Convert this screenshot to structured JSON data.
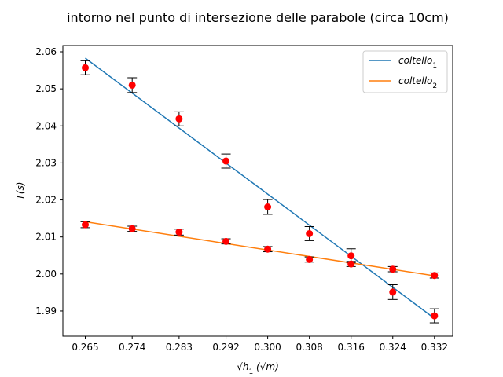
{
  "chart_data": {
    "type": "scatter",
    "title": "intorno nel punto di intersezione delle parabole (circa 10cm)",
    "xlabel_main": "√h",
    "xlabel_sub": "1",
    "xlabel_unit": "(√m)",
    "ylabel": "T(s)",
    "xlim": [
      0.2607,
      0.3355
    ],
    "ylim": [
      1.9832,
      2.0617
    ],
    "x_ticks": [
      0.265,
      0.274,
      0.283,
      0.292,
      0.3,
      0.308,
      0.316,
      0.324,
      0.332
    ],
    "x_tick_labels": [
      "0.265",
      "0.274",
      "0.283",
      "0.292",
      "0.300",
      "0.308",
      "0.316",
      "0.324",
      "0.332"
    ],
    "y_ticks": [
      1.99,
      2.0,
      2.01,
      2.02,
      2.03,
      2.04,
      2.05,
      2.06
    ],
    "y_tick_labels": [
      "1.99",
      "2.00",
      "2.01",
      "2.02",
      "2.03",
      "2.04",
      "2.05",
      "2.06"
    ],
    "legend_position": "top-right",
    "grid": false,
    "series": [
      {
        "name": "coltello",
        "name_sub": "1",
        "color": "#1f77b4",
        "fit_line": {
          "x": [
            0.265,
            0.332
          ],
          "y": [
            2.0583,
            1.988
          ]
        },
        "points": [
          {
            "x": 0.265,
            "y": 2.0557,
            "err": 0.0019
          },
          {
            "x": 0.274,
            "y": 2.051,
            "err": 0.002
          },
          {
            "x": 0.283,
            "y": 2.0419,
            "err": 0.0019
          },
          {
            "x": 0.292,
            "y": 2.0305,
            "err": 0.0019
          },
          {
            "x": 0.3,
            "y": 2.0181,
            "err": 0.002
          },
          {
            "x": 0.308,
            "y": 2.0109,
            "err": 0.0019
          },
          {
            "x": 0.316,
            "y": 2.0049,
            "err": 0.0019
          },
          {
            "x": 0.324,
            "y": 1.9951,
            "err": 0.002
          },
          {
            "x": 0.332,
            "y": 1.9887,
            "err": 0.0019
          }
        ]
      },
      {
        "name": "coltello",
        "name_sub": "2",
        "color": "#ff7f0e",
        "fit_line": {
          "x": [
            0.265,
            0.332
          ],
          "y": [
            2.0141,
            1.9995
          ]
        },
        "points": [
          {
            "x": 0.265,
            "y": 2.0133,
            "err": 0.0008
          },
          {
            "x": 0.274,
            "y": 2.0122,
            "err": 0.0007
          },
          {
            "x": 0.283,
            "y": 2.0113,
            "err": 0.0008
          },
          {
            "x": 0.292,
            "y": 2.0088,
            "err": 0.0007
          },
          {
            "x": 0.3,
            "y": 2.0067,
            "err": 0.0007
          },
          {
            "x": 0.308,
            "y": 2.0039,
            "err": 0.0007
          },
          {
            "x": 0.316,
            "y": 2.0027,
            "err": 0.0007
          },
          {
            "x": 0.324,
            "y": 2.0013,
            "err": 0.0007
          },
          {
            "x": 0.332,
            "y": 1.9996,
            "err": 0.0007
          }
        ]
      }
    ],
    "marker_color": "#ff0000",
    "errorbar_color": "#000000"
  }
}
